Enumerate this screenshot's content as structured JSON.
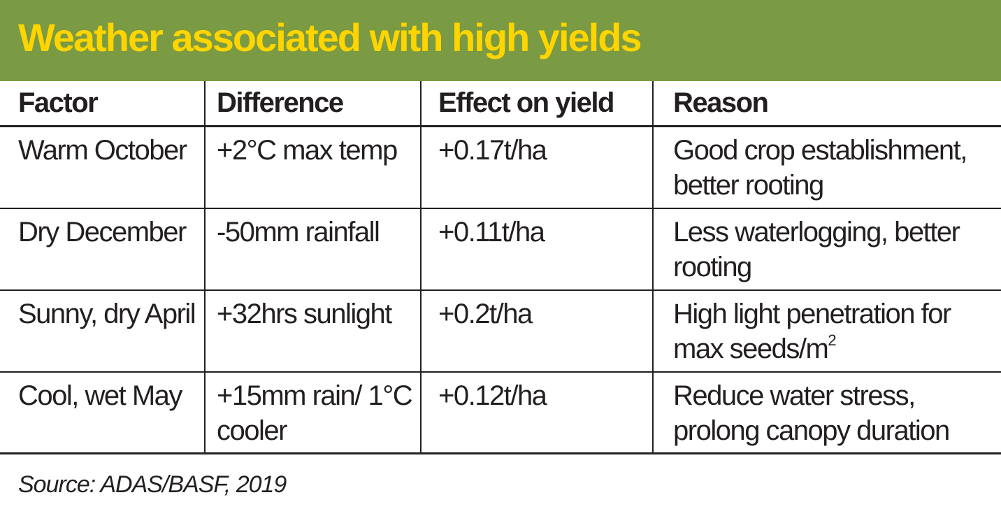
{
  "title": "Weather associated with high yields",
  "colors": {
    "banner": "#7a9a43",
    "title_text": "#ffd500",
    "text": "#231f20"
  },
  "table": {
    "headers": [
      "Factor",
      "Difference",
      "Effect on yield",
      "Reason"
    ],
    "rows": [
      {
        "factor": "Warm October",
        "difference": "+2°C max temp",
        "effect": "+0.17t/ha",
        "reason": "Good crop establishment, better rooting"
      },
      {
        "factor": "Dry December",
        "difference": "-50mm rainfall",
        "effect": "+0.11t/ha",
        "reason": "Less waterlogging, better rooting"
      },
      {
        "factor": "Sunny, dry April",
        "difference": "+32hrs sunlight",
        "effect": "+0.2t/ha",
        "reason": "High light penetration for max seeds/m",
        "reason_superscript": "2"
      },
      {
        "factor": "Cool, wet May",
        "difference": "+15mm rain/ 1°C cooler",
        "effect": "+0.12t/ha",
        "reason": "Reduce water stress, prolong canopy duration"
      }
    ]
  },
  "source": "Source: ADAS/BASF, 2019"
}
